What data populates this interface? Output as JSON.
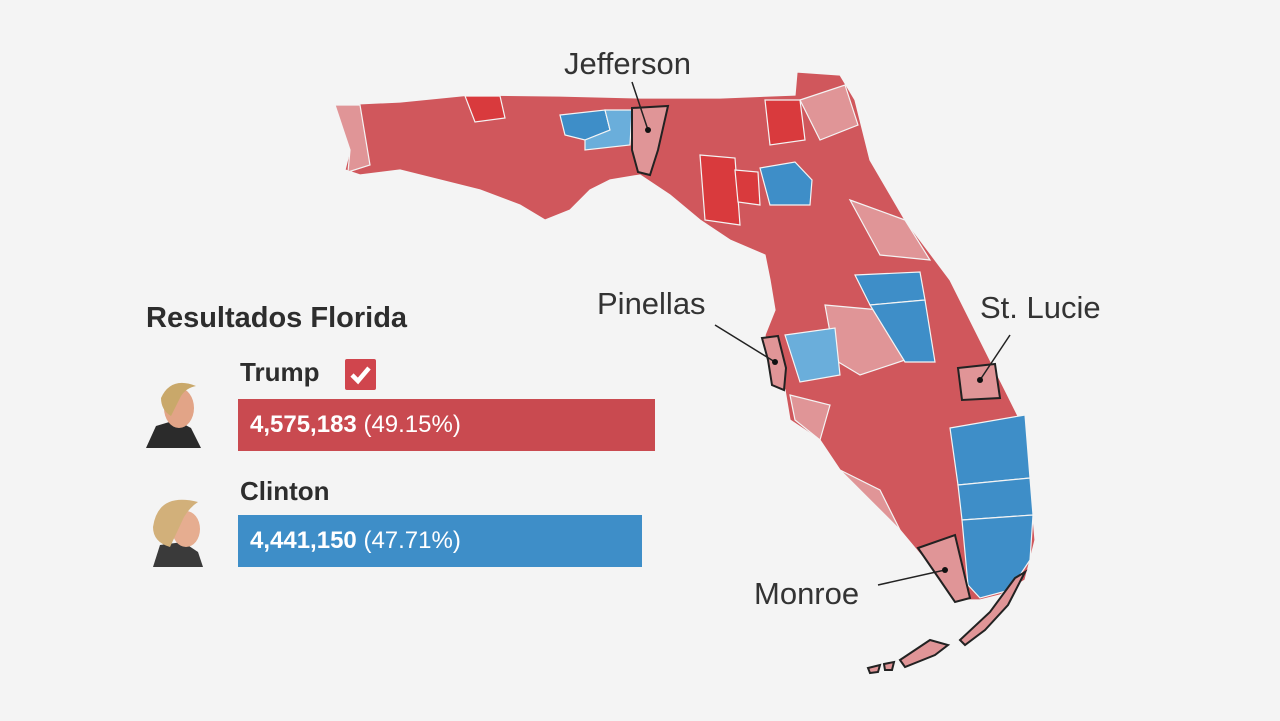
{
  "panel": {
    "title": "Resultados Florida",
    "candidates": [
      {
        "name": "Trump",
        "votes": "4,575,183",
        "percent": "(49.15%)",
        "winner": true,
        "color": "#c94a50",
        "share": 49.15
      },
      {
        "name": "Clinton",
        "votes": "4,441,150",
        "percent": "(47.71%)",
        "winner": false,
        "color": "#3e8ec8",
        "share": 47.71
      }
    ]
  },
  "map": {
    "labels": [
      "Jefferson",
      "Pinellas",
      "St. Lucie",
      "Monroe"
    ],
    "colors": {
      "strong_red": "#d93a3d",
      "red": "#d0575c",
      "light_red": "#e09597",
      "blue": "#3e8ec8",
      "light_blue": "#6aaedb",
      "background": "#f4f4f4"
    }
  }
}
